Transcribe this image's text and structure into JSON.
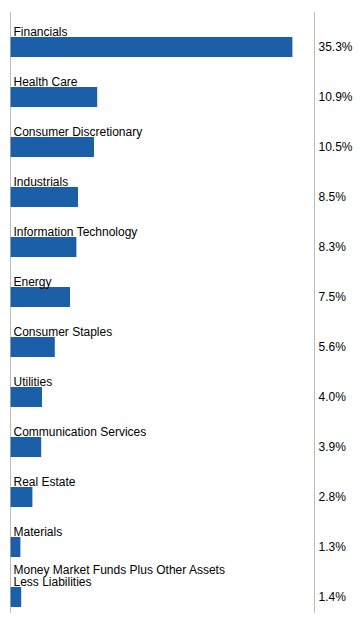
{
  "chart_data": {
    "type": "bar",
    "orientation": "horizontal",
    "categories": [
      "Financials",
      "Health Care",
      "Consumer Discretionary",
      "Industrials",
      "Information Technology",
      "Energy",
      "Consumer Staples",
      "Utilities",
      "Communication Services",
      "Real Estate",
      "Materials",
      "Money Market Funds Plus Other Assets\nLess Liabilities"
    ],
    "values": [
      35.3,
      10.9,
      10.5,
      8.5,
      8.3,
      7.5,
      5.6,
      4.0,
      3.9,
      2.8,
      1.3,
      1.4
    ],
    "value_labels": [
      "35.3%",
      "10.9%",
      "10.5%",
      "8.5%",
      "8.3%",
      "7.5%",
      "5.6%",
      "4.0%",
      "3.9%",
      "2.8%",
      "1.3%",
      "1.4%"
    ],
    "data_labels": true,
    "color": "#1A5FA8",
    "xlim": [
      0,
      38
    ],
    "tick_labels": false,
    "grid": false
  }
}
